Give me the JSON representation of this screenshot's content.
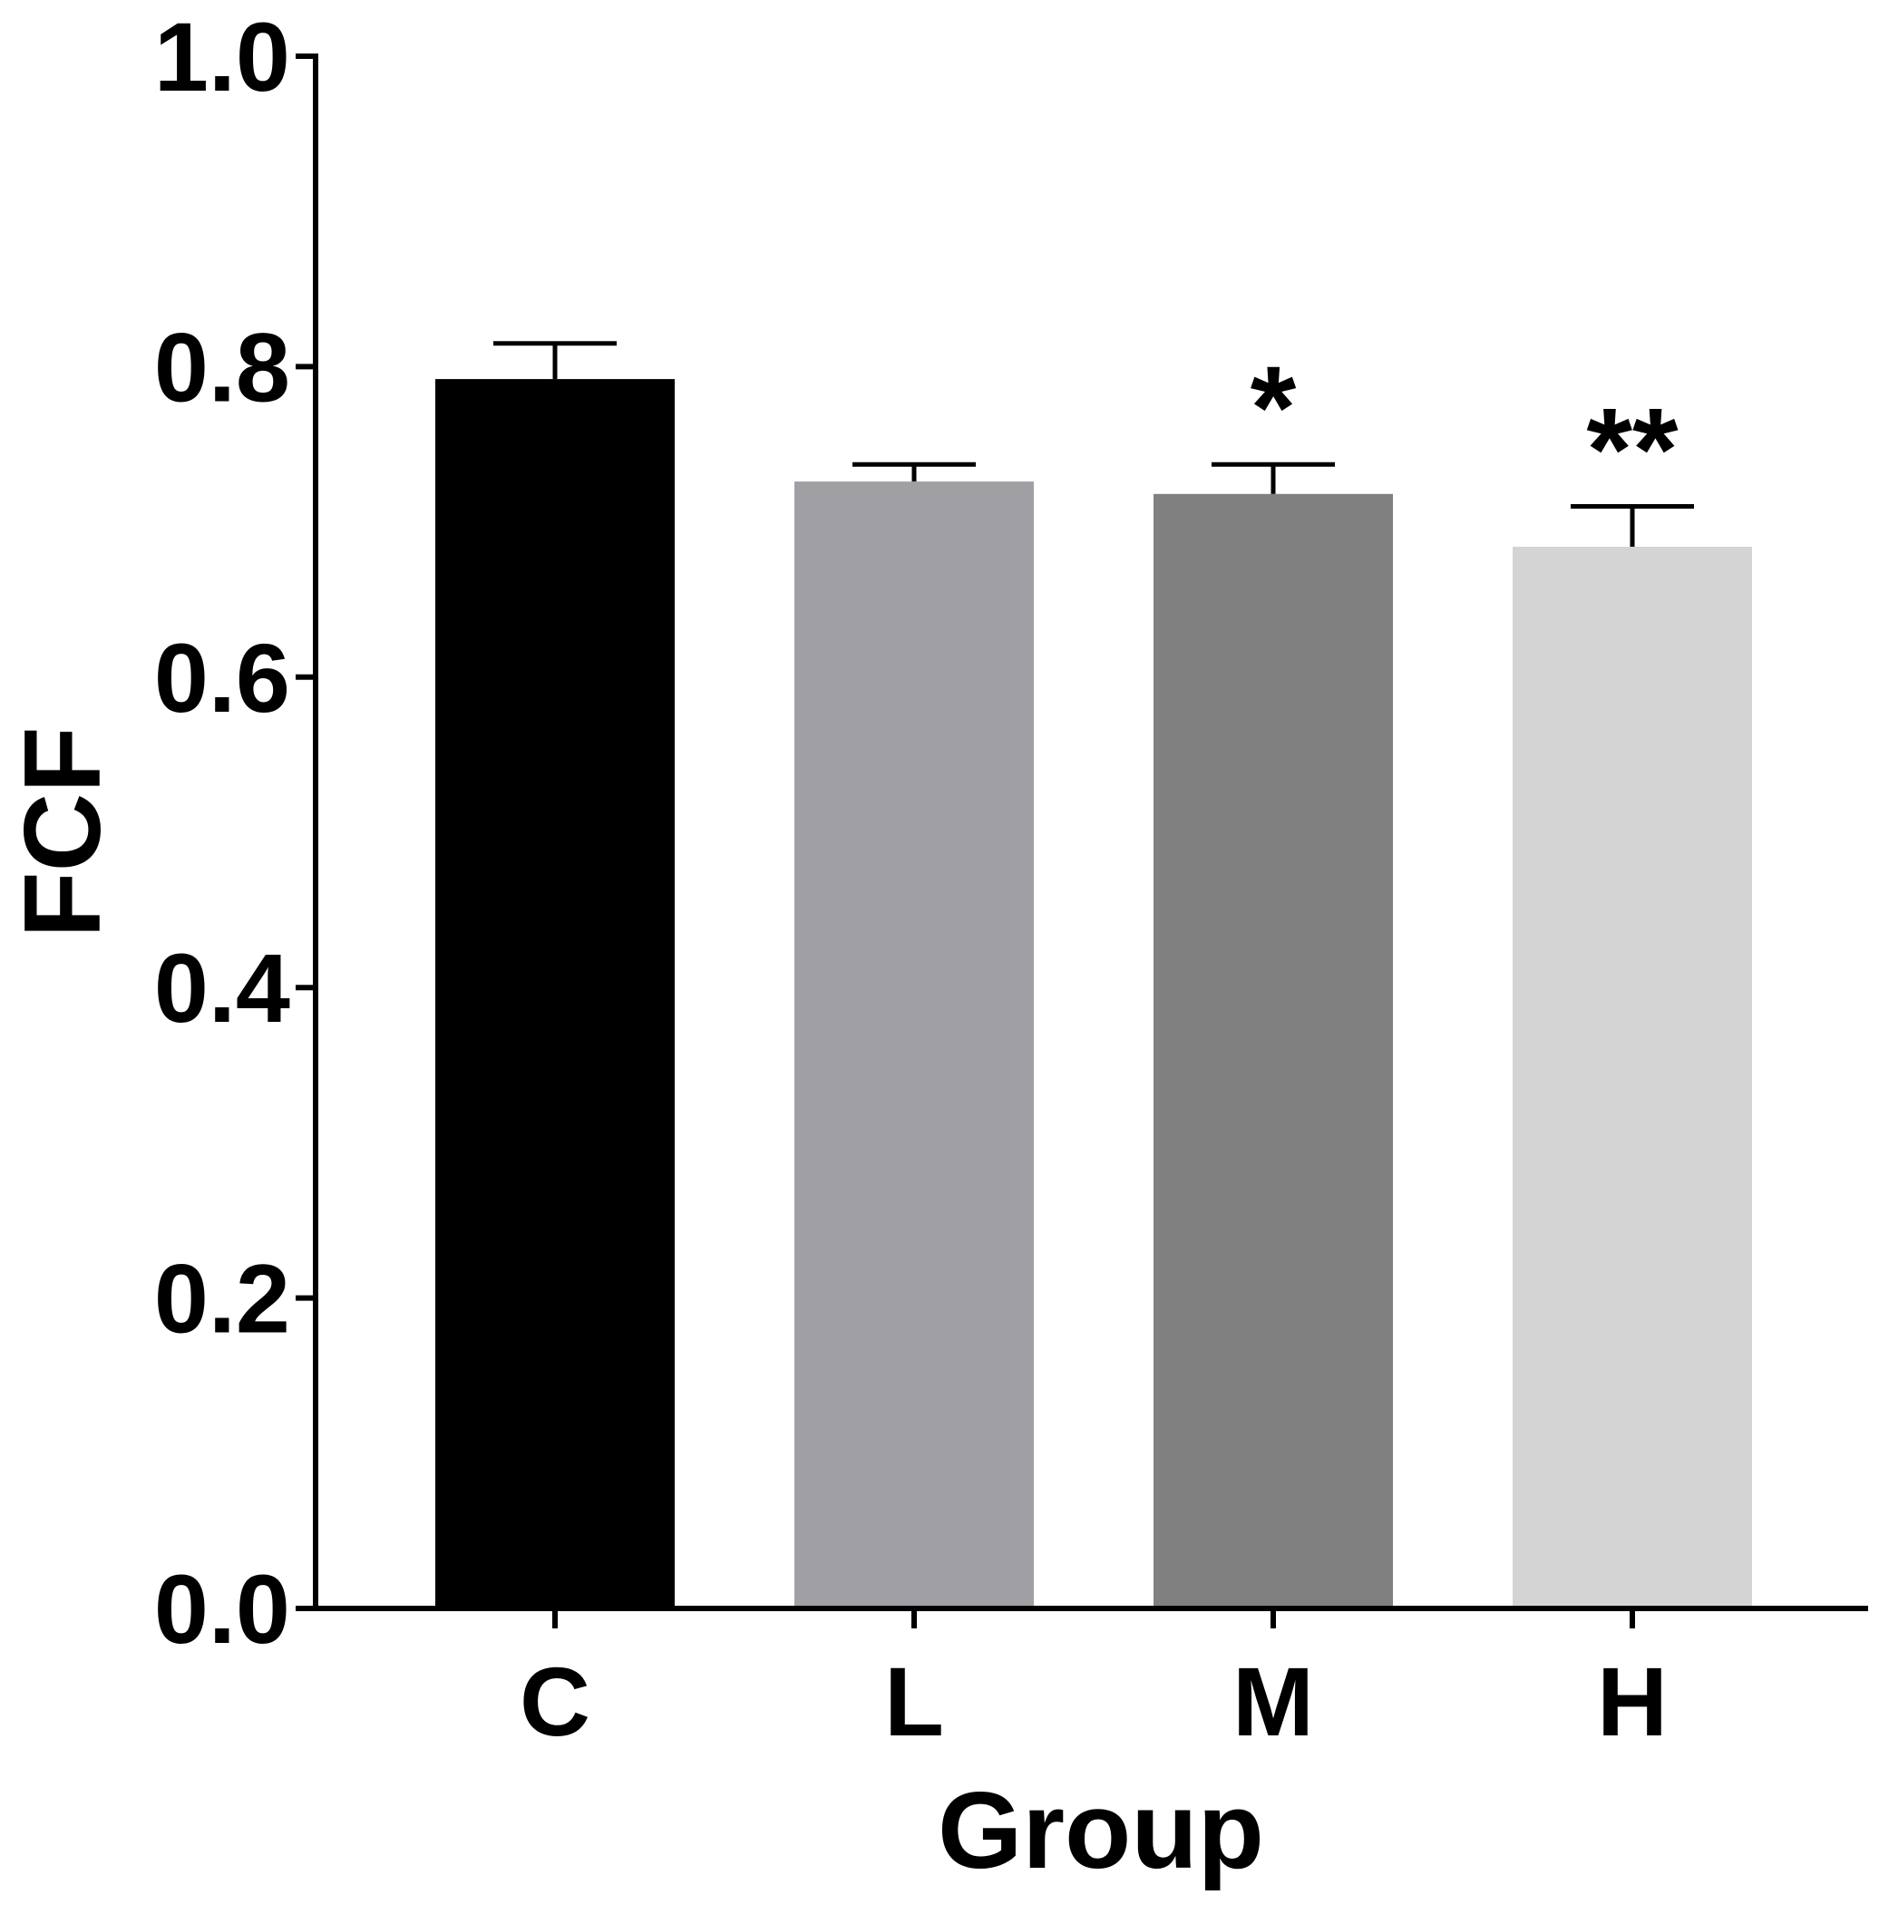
{
  "chart_data": {
    "type": "bar",
    "title": "",
    "xlabel": "Group",
    "ylabel": "FCF",
    "ylim": [
      0,
      1.0
    ],
    "yticks": [
      "0.0",
      "0.2",
      "0.4",
      "0.6",
      "0.8",
      "1.0"
    ],
    "yticks_values": [
      0,
      0.2,
      0.4,
      0.6,
      0.8,
      1.0
    ],
    "categories": [
      "C",
      "L",
      "M",
      "H"
    ],
    "values": [
      0.792,
      0.726,
      0.718,
      0.684
    ],
    "errors": [
      0.023,
      0.011,
      0.019,
      0.026
    ],
    "annotations": [
      "",
      "",
      "*",
      "**"
    ],
    "colors": [
      "#000000",
      "#a0a0a4",
      "#808080",
      "#d4d4d4"
    ],
    "grid": false,
    "legend": "none"
  }
}
